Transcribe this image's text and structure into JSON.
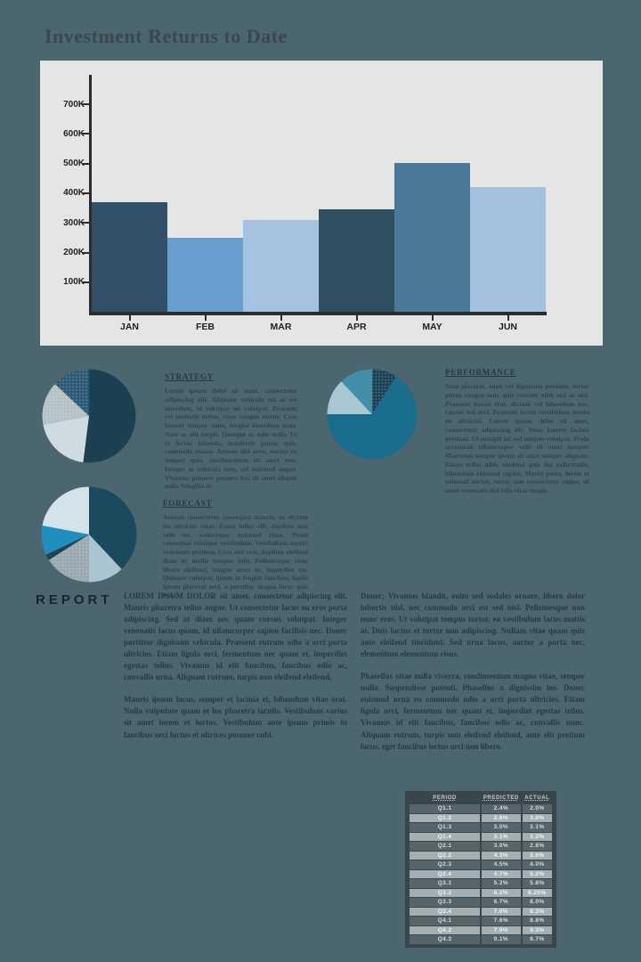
{
  "page": {
    "title": "Investment Returns to Date",
    "background_color": "#4c6670"
  },
  "chart_data": [
    {
      "type": "bar",
      "name": "monthly-returns",
      "title": "Investment Returns to Date",
      "categories": [
        "JAN",
        "FEB",
        "MAR",
        "APR",
        "MAY",
        "JUN"
      ],
      "values": [
        370000,
        250000,
        310000,
        345000,
        500000,
        420000
      ],
      "yticks": [
        "700K",
        "600K",
        "500K",
        "400K",
        "300K",
        "200K",
        "100K"
      ],
      "ylim": [
        0,
        750000
      ],
      "xlabel": "",
      "ylabel": "",
      "grid": false,
      "plot_bg": "#e5e5e5",
      "bar_colors": [
        "#32506a",
        "#67a0ce",
        "#a3c3e1",
        "#2f4f63",
        "#4a7899",
        "#a2c1df"
      ]
    },
    {
      "type": "pie",
      "name": "strategy",
      "slices": [
        {
          "value": 52,
          "color": "#1c3f51",
          "dotted": false
        },
        {
          "value": 20,
          "color": "#cfdbdf",
          "dotted": false
        },
        {
          "value": 15,
          "color": "#b6c1c5",
          "dotted": true
        },
        {
          "value": 13,
          "color": "#2d5a77",
          "dotted": true
        }
      ]
    },
    {
      "type": "pie",
      "name": "performance",
      "slices": [
        {
          "value": 9,
          "color": "#1c4257",
          "dotted": true
        },
        {
          "value": 66,
          "color": "#1a6d8c",
          "dotted": false
        },
        {
          "value": 13,
          "color": "#a9c6d3",
          "dotted": false
        },
        {
          "value": 12,
          "color": "#418fa9",
          "dotted": false
        }
      ]
    },
    {
      "type": "pie",
      "name": "forecast",
      "slices": [
        {
          "value": 38,
          "color": "#1b4a5f",
          "dotted": false
        },
        {
          "value": 12,
          "color": "#a9c5d0",
          "dotted": false
        },
        {
          "value": 16,
          "color": "#9aa8b0",
          "dotted": true
        },
        {
          "value": 2,
          "color": "#23404e",
          "dotted": false
        },
        {
          "value": 10,
          "color": "#1e8fbe",
          "dotted": false
        },
        {
          "value": 22,
          "color": "#d4e2e9",
          "dotted": false
        }
      ]
    }
  ],
  "sections": [
    {
      "heading": "STRATEGY",
      "body": "Lorem ipsum dolor sit amet, consectetur adipiscing elit. Aliquam vehicula mi ut est interdum, id volutpat mi volutpat. Praesent vel molestie tortor, vitae congue metus. Cras laoreet tempor enim, feugiat interdum urna. Nam ac elit turpis. Quisque ac odio nulla. Ut et lectus lobortis, hendrerit purus quis, commodo massa. Aenean nisl arcu, auctor eu tempor quis, condimentum sit amet sem. Integer in vehicula eros, vel euismod augue. Vivamus posuere posuere leo, sit amet aliquet nulla fringilla et."
    },
    {
      "heading": "PERFORMANCE",
      "body": "Nam placerat, enim vel dignissim pretium, tortor purus congue sem, quis rutrum nibh nisl ac nisl. Praesent massa erat, dictum vel bibendum nec, cursus sed orci. Praesent lectus vestibulum metus eu ultricies. Lorem ipsum dolor sit amet, consectetur adipiscing elit. Nunc laoreet lacinia pretium. Ut suscipit mi sed tempus volutpat. Proin accumsan ullamcorper velit sit amet semper. Maecenas semper ipsum sit amet semper aliquam. Etiam tellus nibh, eleifend quis dui sollicitudin, bibendum euismod sapien. Morbi porta, lorem et euismod auctor, tortor ante consectetur augue, sit amet venenatis nisl felis vitae turpis."
    },
    {
      "heading": "FORECAST",
      "body": "Aenean consectetur consequat mauris, eu dictum leo ultricies vitae. Fusce tellus elit, dapibus non velit eu, scelerisque euismod risus. Proin consequat tristique vestibulum. Vestibulum auctor venenatis pretium. Cras nisl erat, dapibus eleifend diam et, mollis tempus velit. Pellentesque vitae libero eleifend, congue urna in, imperdiet est. Quisque volutpat, ipsum in feugiat faucibus, ligula ipsum placerat orci, a porttitor magna lacus quis felis."
    }
  ],
  "report": {
    "heading": "REPORT",
    "col1_paragraphs": [
      "LOREM IPSUM DOLOR sit amet, consectetur adipiscing elit. Mauris pharetra tellus augue. Ut consectetur lacus eu eros porta adipiscing. Sed at diam nec quam cursus volutpat. Integer venenatis lacus quam, id ullamcorper sapien facilisis nec. Donec porttitor dignissim vehicula. Praesent rutrum odio a orci porta ultricies. Etiam ligula orci, fermentum nec quam et, imperdiet egestas tellus. Vivamus id elit faucibus, faucibus odio ac, convallis urna. Aliquam rutrum, turpis non eleifend eleifend,",
      "Mauris ipsum lacus, semper et lacinia et, bibendum vitae erat. Nulla vulputate quam et leo pharetra iaculis. Vestibulum varius sit amet lorem et luctus. Vestibulum ante ipsum primis in faucibus orci luctus et ultrices posuere cubi."
    ],
    "col2_paragraphs": [
      "Donec; Vivamus blandit, enim sed sodales ornare, libero dolor lobortis nisl, nec commodo orci est sed nisl. Pellentesque non nunc eros. Ut volutpat tempus tortor, eu vestibulum lacus mattis at. Duis luctus et tortor non adipiscing. Nullam vitae quam quis ante eleifend tincidunt. Sed urna lacus, auctor a porta nec, elementum elementum risus.",
      "Phasellus vitae nulla viverra, condimentum magna vitae, semper nulla. Suspendisse potenti. Phasellus a dignissim leo. Donec euismod urna eu commodo odio a orci porta ultricies. Etiam ligula orci, fermentum nec quam et, imperdiet egestas tellus. Vivamus id elit faucibus, faucibus odio ac, convallis nunc. Aliquam rutrum, turpis non eleifend eleifend, ante elit pretium lacus, eget faucibus lectus orci non libero."
    ]
  },
  "table": {
    "headers": [
      "PERIOD",
      "PREDICTED",
      "ACTUAL"
    ],
    "rows": [
      [
        "Q1.1",
        "2.4%",
        "2.0%"
      ],
      [
        "Q1.2",
        "2.6%",
        "3.0%"
      ],
      [
        "Q1.3",
        "3.0%",
        "3.1%"
      ],
      [
        "Q1.4",
        "3.1%",
        "3.2%"
      ],
      [
        "Q2.1",
        "3.0%",
        "2.8%"
      ],
      [
        "Q2.2",
        "4.3%",
        "3.6%"
      ],
      [
        "Q2.3",
        "4.5%",
        "4.0%"
      ],
      [
        "Q2.4",
        "4.7%",
        "5.2%"
      ],
      [
        "Q3.1",
        "5.2%",
        "5.8%"
      ],
      [
        "Q3.2",
        "6.2%",
        "6.25%"
      ],
      [
        "Q3.3",
        "6.7%",
        "8.0%"
      ],
      [
        "Q3.4",
        "7.0%",
        "8.3%"
      ],
      [
        "Q4.1",
        "7.6%",
        "8.8%"
      ],
      [
        "Q4.2",
        "7.9%",
        "9.3%"
      ],
      [
        "Q4.3",
        "9.1%",
        "9.7%"
      ]
    ]
  }
}
